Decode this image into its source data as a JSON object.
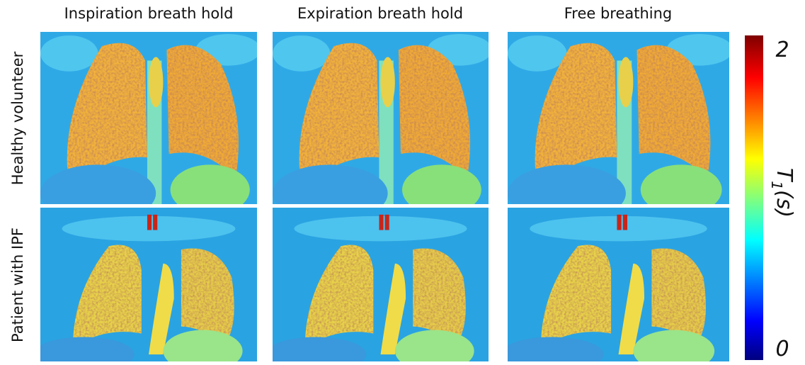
{
  "columns": [
    "Inspiration breath hold",
    "Expiration breath hold",
    "Free breathing"
  ],
  "rows": [
    "Healthy volunteer",
    "Patient with IPF"
  ],
  "colorbar": {
    "symbol": "T",
    "subscript": "1",
    "unit": "(s)",
    "max": 2,
    "min": 0
  }
}
